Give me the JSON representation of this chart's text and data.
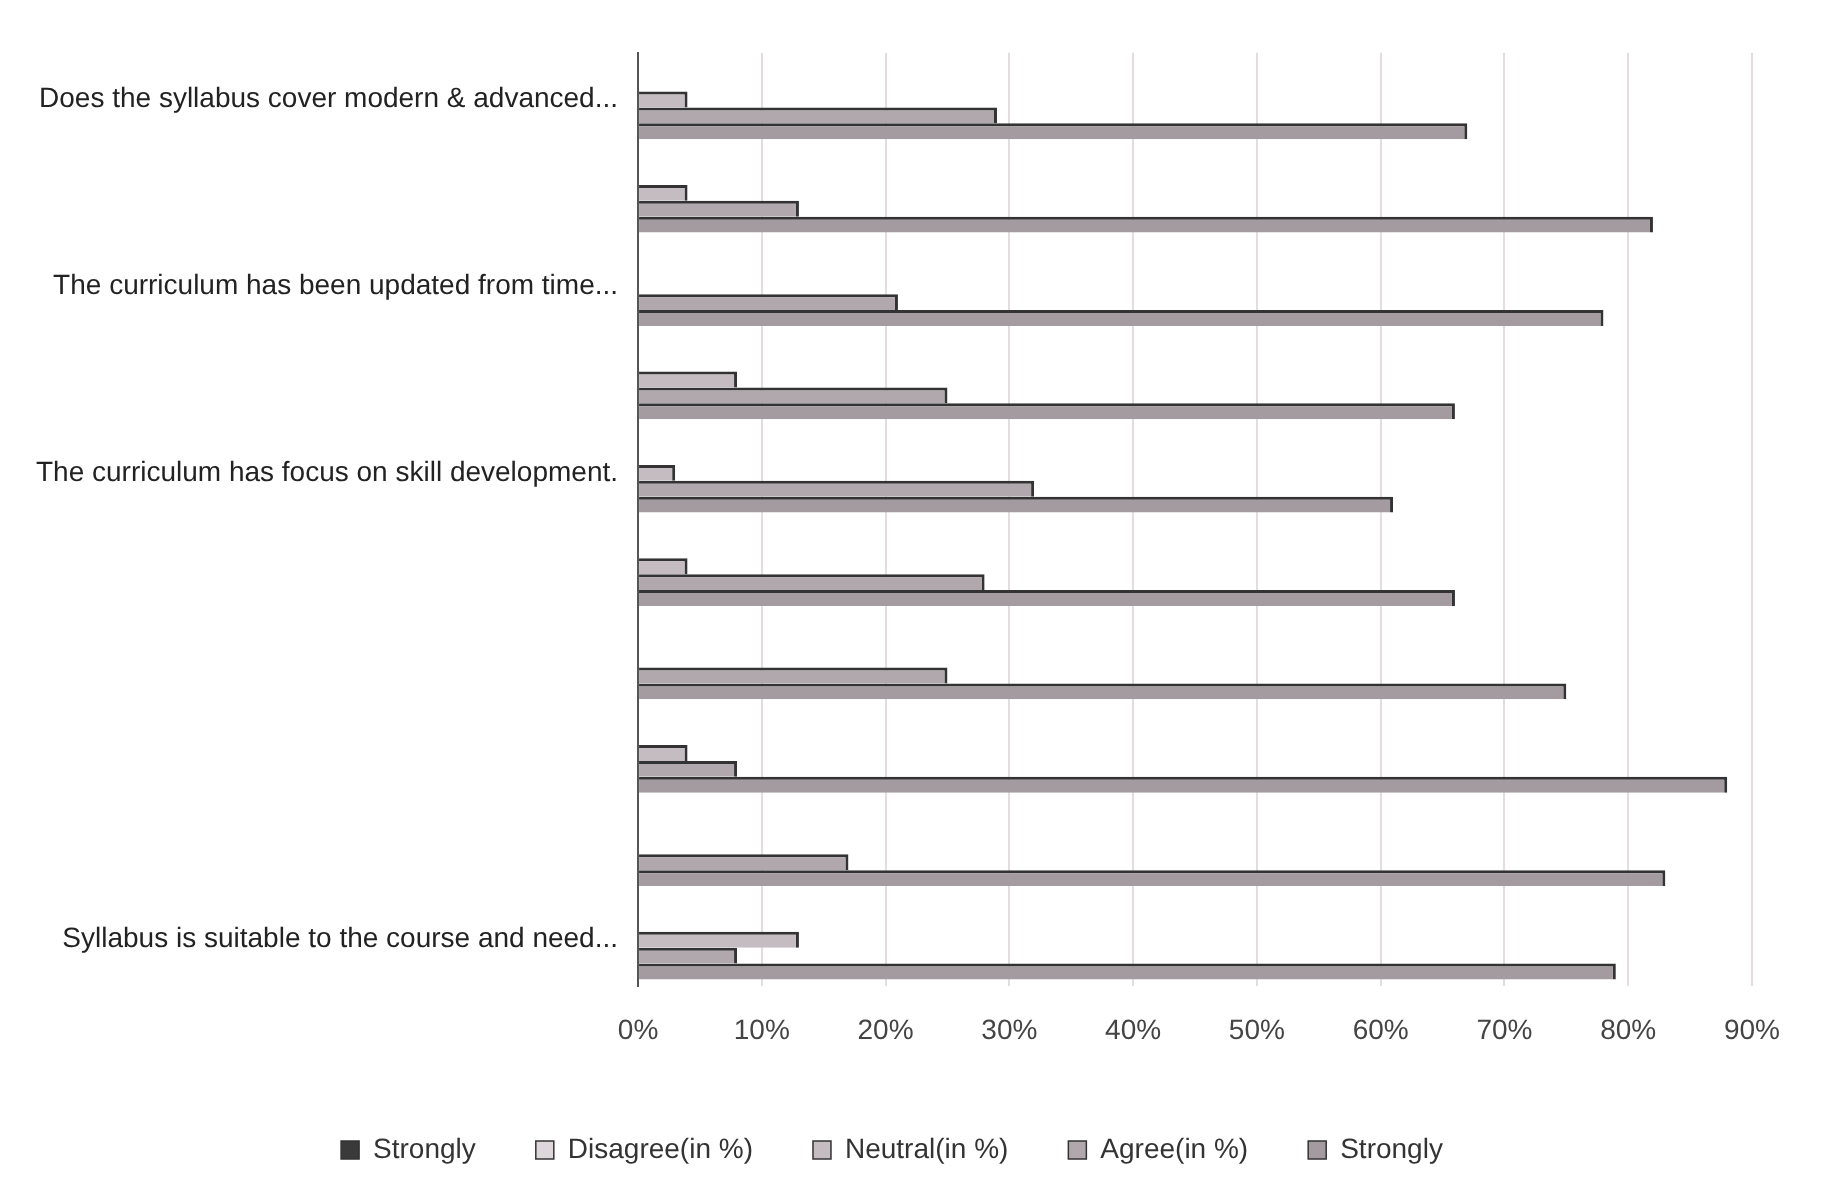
{
  "chart_data": {
    "type": "bar",
    "orientation": "horizontal",
    "categories": [
      "Does the syllabus cover modern & advanced...",
      null,
      "The curriculum has been updated from time...",
      null,
      "The curriculum has focus on skill development.",
      null,
      null,
      null,
      null,
      "Syllabus is suitable to the course and need..."
    ],
    "series": [
      {
        "name": "Strongly",
        "color": "#3a3a3a",
        "values": [
          0,
          0,
          0,
          0,
          0,
          0,
          0,
          0,
          0,
          0
        ]
      },
      {
        "name": "Disagree(in %)",
        "color": "#ddd6da",
        "values": [
          0,
          0,
          0,
          0,
          0,
          0,
          0,
          0,
          0,
          0
        ]
      },
      {
        "name": "Neutral(in %)",
        "color": "#c4bcc0",
        "values": [
          4,
          4,
          0,
          8,
          3,
          4,
          0,
          4,
          0,
          13
        ]
      },
      {
        "name": "Agree(in %)",
        "color": "#b0a8ac",
        "values": [
          29,
          13,
          21,
          25,
          32,
          28,
          25,
          8,
          17,
          8
        ]
      },
      {
        "name": "Strongly",
        "color": "#a39ba0",
        "values": [
          67,
          82,
          78,
          66,
          61,
          66,
          75,
          88,
          83,
          79
        ]
      }
    ],
    "xlim": [
      0,
      90
    ],
    "xticks": [
      {
        "value": 0,
        "label": "0%"
      },
      {
        "value": 10,
        "label": "10%"
      },
      {
        "value": 20,
        "label": "20%"
      },
      {
        "value": 30,
        "label": "30%"
      },
      {
        "value": 40,
        "label": "40%"
      },
      {
        "value": 50,
        "label": "50%"
      },
      {
        "value": 60,
        "label": "60%"
      },
      {
        "value": 70,
        "label": "70%"
      },
      {
        "value": 80,
        "label": "80%"
      },
      {
        "value": 90,
        "label": "90%"
      }
    ],
    "grid": "x",
    "legend": "bottom"
  }
}
